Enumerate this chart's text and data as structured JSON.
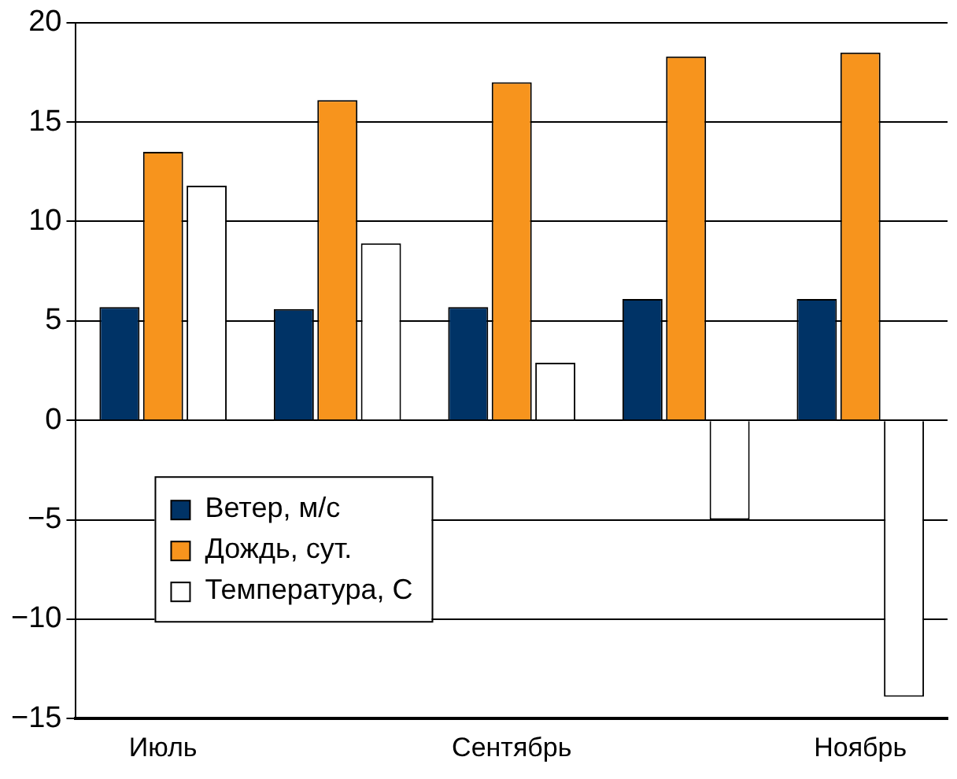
{
  "chart_data": {
    "type": "bar",
    "categories": [
      "Июль",
      null,
      "Сентябрь",
      null,
      "Ноябрь"
    ],
    "series": [
      {
        "name": "Ветер, м/с",
        "color": "#003366",
        "values": [
          5.7,
          5.6,
          5.7,
          6.1,
          6.1
        ]
      },
      {
        "name": "Дождь, сут.",
        "color": "#f7941d",
        "values": [
          13.5,
          16.1,
          17.0,
          18.3,
          18.5
        ]
      },
      {
        "name": "Температура, С",
        "color": "#ffffff",
        "values": [
          11.8,
          8.9,
          2.9,
          -5.0,
          -13.9
        ]
      }
    ],
    "ylim": [
      -15,
      20
    ],
    "yticks": [
      {
        "value": -15,
        "label": "−15"
      },
      {
        "value": -10,
        "label": "−10"
      },
      {
        "value": -5,
        "label": "−5"
      },
      0,
      5,
      10,
      15,
      20
    ],
    "grid": "y",
    "legend": "bottom left"
  }
}
